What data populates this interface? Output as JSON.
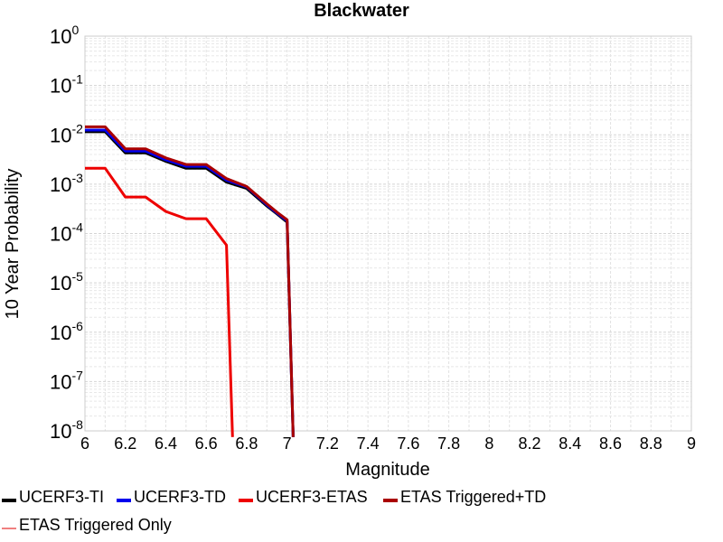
{
  "chart_data": {
    "type": "line",
    "title": "Blackwater",
    "xlabel": "Magnitude",
    "ylabel": "10 Year Probability",
    "xlim": [
      6,
      9
    ],
    "ylim": [
      1e-08,
      1
    ],
    "yscale": "log",
    "grid": true,
    "legend_position": "bottom",
    "x_ticks": [
      "6",
      "6.2",
      "6.4",
      "6.6",
      "6.8",
      "7",
      "7.2",
      "7.4",
      "7.6",
      "7.8",
      "8",
      "8.2",
      "8.4",
      "8.6",
      "8.8",
      "9"
    ],
    "y_ticks": [
      {
        "base": "10",
        "exp": "0"
      },
      {
        "base": "10",
        "exp": "-1"
      },
      {
        "base": "10",
        "exp": "-2"
      },
      {
        "base": "10",
        "exp": "-3"
      },
      {
        "base": "10",
        "exp": "-4"
      },
      {
        "base": "10",
        "exp": "-5"
      },
      {
        "base": "10",
        "exp": "-6"
      },
      {
        "base": "10",
        "exp": "-7"
      },
      {
        "base": "10",
        "exp": "-8"
      }
    ],
    "series": [
      {
        "name": "UCERF3-TI",
        "color": "#000000",
        "points": [
          [
            6.0,
            0.0115
          ],
          [
            6.1,
            0.0115
          ],
          [
            6.2,
            0.0043
          ],
          [
            6.3,
            0.0043
          ],
          [
            6.4,
            0.0029
          ],
          [
            6.5,
            0.0021
          ],
          [
            6.6,
            0.0021
          ],
          [
            6.7,
            0.0011
          ],
          [
            6.8,
            0.00082
          ],
          [
            6.9,
            0.00036
          ],
          [
            6.95,
            0.00025
          ],
          [
            7.0,
            0.00017
          ],
          [
            7.03,
            7.5e-09
          ]
        ]
      },
      {
        "name": "UCERF3-TD",
        "color": "#0000ee",
        "points": [
          [
            6.0,
            0.0125
          ],
          [
            6.1,
            0.0125
          ],
          [
            6.2,
            0.0047
          ],
          [
            6.3,
            0.0047
          ],
          [
            6.4,
            0.0031
          ],
          [
            6.5,
            0.0023
          ],
          [
            6.6,
            0.0023
          ],
          [
            6.7,
            0.0012
          ],
          [
            6.8,
            0.00088
          ],
          [
            6.9,
            0.00038
          ],
          [
            6.95,
            0.00026
          ],
          [
            7.0,
            0.00018
          ],
          [
            7.03,
            7.5e-09
          ]
        ]
      },
      {
        "name": "UCERF3-ETAS",
        "color": "#ee0000",
        "points": [
          [
            6.0,
            0.0021
          ],
          [
            6.1,
            0.0021
          ],
          [
            6.2,
            0.00055
          ],
          [
            6.3,
            0.00055
          ],
          [
            6.4,
            0.00028
          ],
          [
            6.5,
            0.0002
          ],
          [
            6.6,
            0.0002
          ],
          [
            6.7,
            5.8e-05
          ],
          [
            6.73,
            7.5e-09
          ]
        ]
      },
      {
        "name": "ETAS Triggered+TD",
        "color": "#aa0000",
        "points": [
          [
            6.0,
            0.0145
          ],
          [
            6.1,
            0.0145
          ],
          [
            6.2,
            0.0052
          ],
          [
            6.3,
            0.0052
          ],
          [
            6.4,
            0.0034
          ],
          [
            6.5,
            0.0025
          ],
          [
            6.6,
            0.0025
          ],
          [
            6.7,
            0.0013
          ],
          [
            6.8,
            0.0009
          ],
          [
            6.9,
            0.0004
          ],
          [
            6.95,
            0.00027
          ],
          [
            7.0,
            0.00019
          ],
          [
            7.03,
            7.5e-09
          ]
        ]
      },
      {
        "name": "ETAS Triggered Only",
        "color": "#f08080",
        "points": []
      }
    ]
  }
}
